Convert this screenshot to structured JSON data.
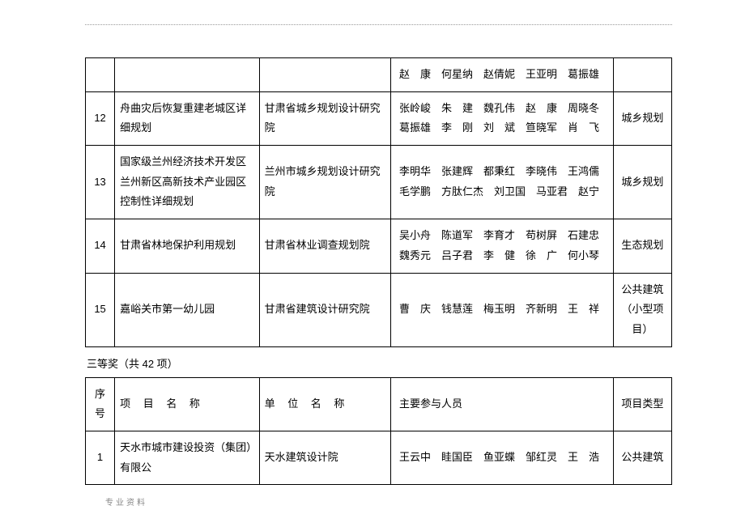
{
  "colors": {
    "page_bg": "#ffffff",
    "border": "#000000",
    "text": "#000000",
    "footer": "#888888",
    "dotted": "#999999"
  },
  "table1": {
    "rows": [
      {
        "num": "",
        "project": "",
        "unit": "",
        "people": "赵　康　何星纳　赵倩妮　王亚明　葛振雄",
        "type": ""
      },
      {
        "num": "12",
        "project": "舟曲灾后恢复重建老城区详细规划",
        "unit": "甘肃省城乡规划设计研究院",
        "people": "张岭峻　朱　建　魏孔伟　赵　康　周晓冬\n葛振雄　李　刚　刘　斌　笪晓军　肖　飞",
        "type": "城乡规划"
      },
      {
        "num": "13",
        "project": "国家级兰州经济技术开发区兰州新区高新技术产业园区控制性详细规划",
        "unit": "兰州市城乡规划设计研究院",
        "people": "李明华　张建辉　都秉红　李晓伟　王鸿儒\n毛学鹏　方肽仁杰　刘卫国　马亚君　赵宁",
        "type": "城乡规划"
      },
      {
        "num": "14",
        "project": "甘肃省林地保护利用规划",
        "unit": "甘肃省林业调查规划院",
        "people": "吴小舟　陈道军　李育才　苟树屏　石建忠\n魏秀元　吕子君　李　健　徐　广　何小琴",
        "type": "生态规划"
      },
      {
        "num": "15",
        "project": "嘉峪关市第一幼儿园",
        "unit": "甘肃省建筑设计研究院",
        "people": "曹　庆　钱慧莲　梅玉明　齐新明　王　祥",
        "type": "公共建筑（小型项目）"
      }
    ]
  },
  "subtitle": "三等奖（共 42 项）",
  "table2": {
    "header": {
      "num": "序号",
      "project": "项 目 名 称",
      "unit": "单 位 名 称",
      "people": "主要参与人员",
      "type": "项目类型"
    },
    "rows": [
      {
        "num": "1",
        "project": "天水市城市建设投资（集团）有限公",
        "unit": "天水建筑设计院",
        "people": "王云中　眭国臣　鱼亚蝶　邹红灵　王　浩",
        "type": "公共建筑"
      }
    ]
  },
  "footer": "专业资料"
}
